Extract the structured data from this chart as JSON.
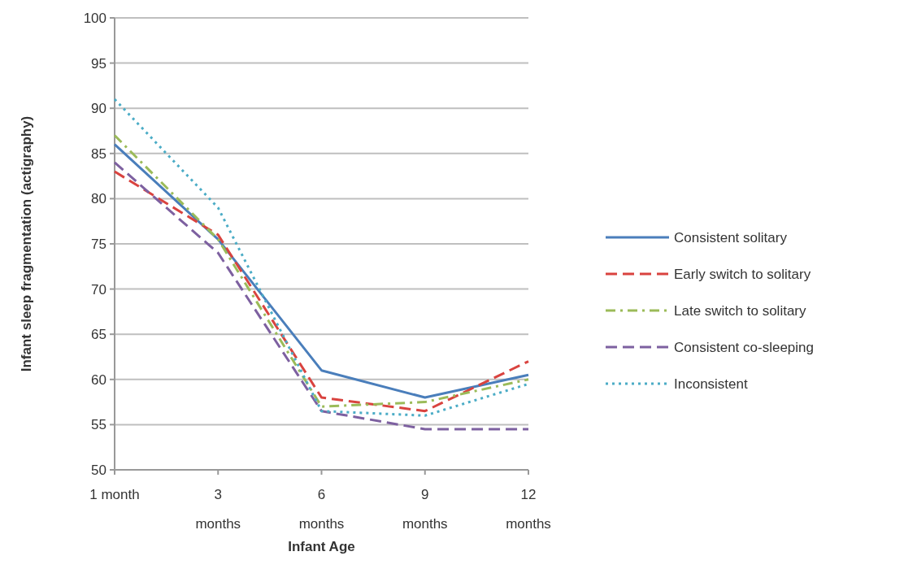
{
  "chart_data": {
    "type": "line",
    "xlabel": "Infant Age",
    "ylabel": "Infant sleep fragmentation (actigraphy)",
    "categories": [
      "1 month",
      "3 months",
      "6 months",
      "9 months",
      "12 months"
    ],
    "ylim": [
      50,
      100
    ],
    "yticks": [
      50,
      55,
      60,
      65,
      70,
      75,
      80,
      85,
      90,
      95,
      100
    ],
    "grid": "y",
    "legend": "right",
    "series": [
      {
        "name": "Consistent solitary",
        "color": "#4a7ebb",
        "line_style": "solid",
        "values": [
          86,
          75.5,
          61,
          58,
          60.5
        ]
      },
      {
        "name": "Early switch to solitary",
        "color": "#d9433f",
        "line_style": "dashed",
        "values": [
          83,
          76,
          58,
          56.5,
          62
        ]
      },
      {
        "name": "Late switch to solitary",
        "color": "#9bbb59",
        "line_style": "dashdot",
        "values": [
          87,
          75.5,
          57,
          57.5,
          60
        ]
      },
      {
        "name": "Consistent co-sleeping",
        "color": "#7d60a0",
        "line_style": "dashed",
        "values": [
          84,
          74,
          56.5,
          54.5,
          54.5
        ]
      },
      {
        "name": "Inconsistent",
        "color": "#4bacc6",
        "line_style": "dotted",
        "values": [
          91,
          79,
          56.5,
          56,
          59.5
        ]
      }
    ]
  }
}
